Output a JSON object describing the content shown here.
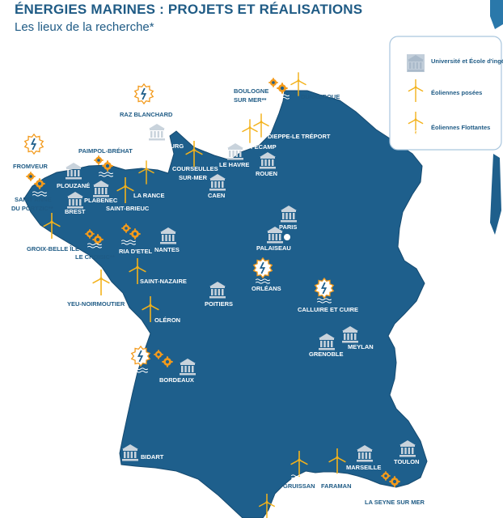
{
  "header": {
    "title": "ÉNERGIES MARINES : PROJETS ET RÉALISATIONS",
    "subtitle": "Les lieux de la recherche*"
  },
  "legend": {
    "university": "Université et École d'ingénieurs",
    "posees": "Éoliennes posées",
    "flottantes": "Éoliennes Flottantes"
  },
  "colors": {
    "land": "#1e5f8c",
    "coast_outline": "#154a70",
    "building": "#c9d3dc",
    "turbine": "#f3b21b",
    "gear": "#f39a1b",
    "wave": "#ffffff",
    "text_dark": "#1f5b85"
  },
  "places": {
    "raz_blanchard": "RAZ BLANCHARD",
    "boulogne": "BOULOGNE",
    "sur_mer": "SUR MER**",
    "dunkerque": "DUNKERQUE",
    "dieppe": "DIEPPE-LE TRÉPORT",
    "fecamp": "FÉCAMP",
    "cherbourg": "CHERBOURG",
    "le_havre": "LE HAVRE",
    "rouen": "ROUEN",
    "courseulles1": "COURSEULLES",
    "courseulles2": "SUR-MER",
    "caen": "CAEN",
    "fromveur": "FROMVEUR",
    "paimpol": "PAIMPOL-BRÉHAT",
    "plouzane": "PLOUZANÉ",
    "plabenec": "PLABENEC",
    "la_rance": "LA RANCE",
    "saint_anne1": "SAINT ANNE",
    "saint_anne2": "DU PORTZIC**",
    "brest": "BREST",
    "saint_brieuc": "SAINT-BRIEUC",
    "paris": "PARIS",
    "palaiseau": "PALAISEAU",
    "groix": "GROIX-BELLE ÎLE",
    "le_croisic": "LE CROISIC**",
    "ria_detel": "RIA D'ETEL",
    "nantes": "NANTES",
    "saint_nazaire": "SAINT-NAZAIRE",
    "orleans": "ORLÉANS",
    "yeu": "YEU-NOIRMOUTIER",
    "poitiers": "POITIERS",
    "calluire": "CALLUIRE ET CUIRE",
    "oleron": "OLÉRON",
    "meylan": "MEYLAN",
    "grenoble": "GRENOBLE",
    "bordeaux": "BORDEAUX",
    "bidart": "BIDART",
    "marseille": "MARSEILLE",
    "toulon": "TOULON",
    "gruissan": "GRUISSAN",
    "faraman": "FARAMAN",
    "la_seyne": "LA SEYNE SUR MER"
  }
}
